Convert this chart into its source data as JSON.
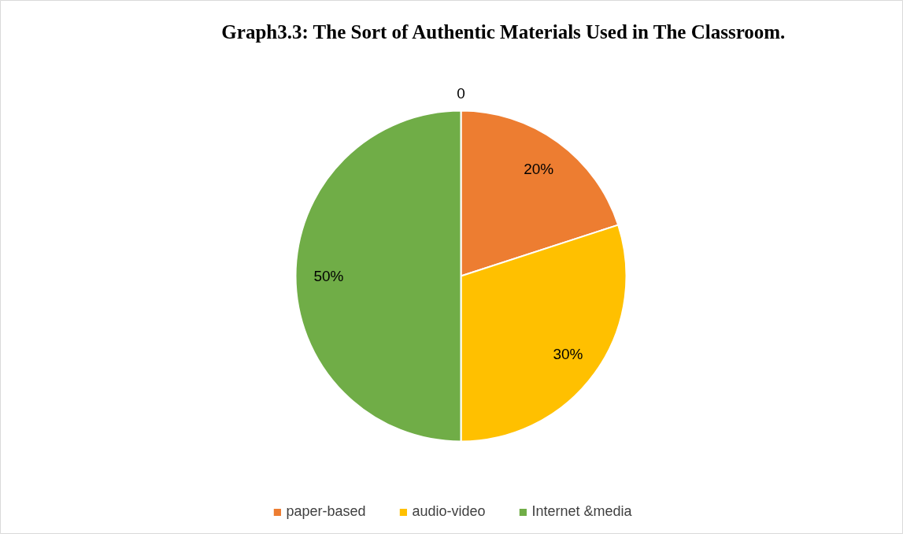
{
  "chart_data": {
    "type": "pie",
    "title": "Graph3.3: The Sort of Authentic Materials Used in The Classroom.",
    "categories": [
      "paper-based",
      "audio-video",
      "Internet &media"
    ],
    "values": [
      20,
      30,
      50
    ],
    "colors": [
      "#ed7d31",
      "#ffc000",
      "#70ad47"
    ],
    "value_labels": [
      "20%",
      "30%",
      "50%"
    ],
    "annotations": [
      "0"
    ],
    "legend": "bottom"
  }
}
